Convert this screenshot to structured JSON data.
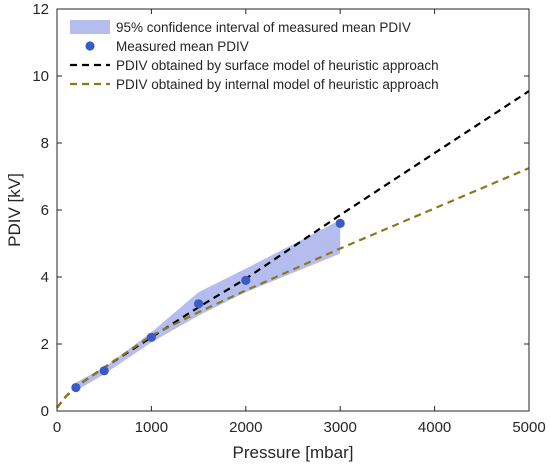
{
  "chart_data": {
    "type": "line",
    "xlabel": "Pressure [mbar]",
    "ylabel": "PDIV [kV]",
    "xlim": [
      0,
      5000
    ],
    "ylim": [
      0,
      12
    ],
    "xticks": [
      0,
      1000,
      2000,
      3000,
      4000,
      5000
    ],
    "yticks": [
      0,
      2,
      4,
      6,
      8,
      10,
      12
    ],
    "grid": false,
    "legend_position": "top-left",
    "series": [
      {
        "name": "95% confidence interval of measured mean PDIV",
        "kind": "band",
        "color": "#b4bdee",
        "x": [
          200,
          500,
          1000,
          1500,
          2000,
          3000
        ],
        "lower": [
          0.6,
          1.1,
          2.05,
          2.85,
          3.55,
          4.7
        ],
        "upper": [
          0.85,
          1.3,
          2.35,
          3.55,
          4.25,
          5.7
        ]
      },
      {
        "name": "Measured mean PDIV",
        "kind": "scatter",
        "color": "#3a5bc7",
        "x": [
          200,
          500,
          1000,
          1500,
          2000,
          3000
        ],
        "y": [
          0.7,
          1.2,
          2.2,
          3.2,
          3.9,
          5.6
        ]
      },
      {
        "name": "PDIV obtained by surface model of heuristic approach",
        "kind": "dashed-line",
        "color": "#000000",
        "x": [
          0,
          100,
          200,
          500,
          1000,
          1500,
          2000,
          3000,
          4000,
          5000
        ],
        "y": [
          0.1,
          0.45,
          0.72,
          1.3,
          2.2,
          3.1,
          3.95,
          5.85,
          7.7,
          9.55
        ]
      },
      {
        "name": "PDIV obtained by internal model of heuristic approach",
        "kind": "dashed-line",
        "color": "#8a7a1c",
        "x": [
          0,
          100,
          200,
          500,
          1000,
          1500,
          2000,
          3000,
          4000,
          5000
        ],
        "y": [
          0.1,
          0.45,
          0.72,
          1.3,
          2.25,
          2.95,
          3.6,
          4.85,
          6.05,
          7.25
        ]
      }
    ]
  }
}
